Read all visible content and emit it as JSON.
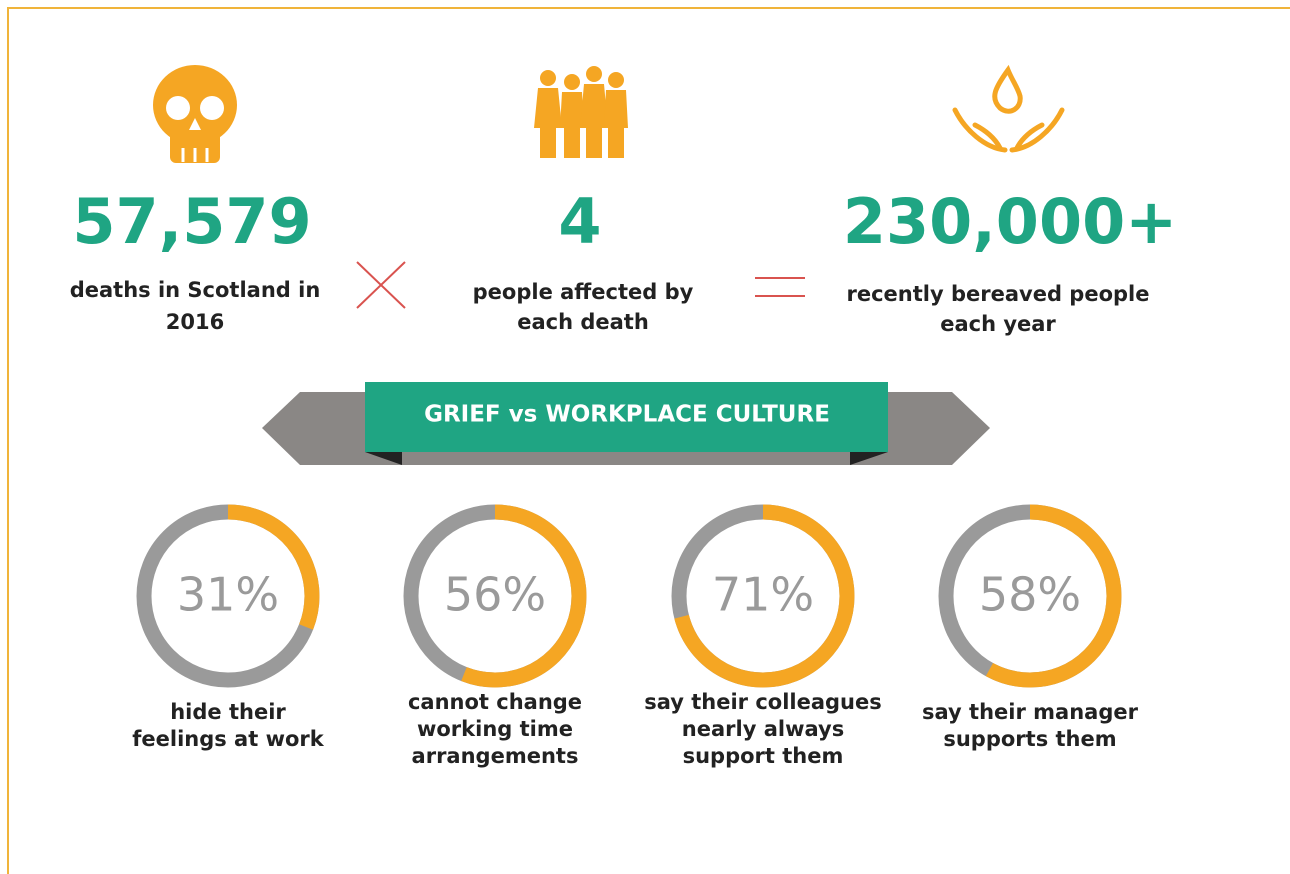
{
  "stats": [
    {
      "number": "57,579",
      "caption": [
        "deaths in Scotland in",
        "2016"
      ]
    },
    {
      "number": "4",
      "caption": [
        "people affected by",
        "each death"
      ]
    },
    {
      "number": "230,000+",
      "caption": [
        "recently bereaved people",
        "each year"
      ]
    }
  ],
  "banner": "GRIEF vs WORKPLACE CULTURE",
  "rings": [
    {
      "value": 31,
      "label": "31%",
      "caption": [
        "hide their",
        "feelings at work"
      ]
    },
    {
      "value": 56,
      "label": "56%",
      "caption": [
        "cannot change",
        "working time",
        "arrangements"
      ]
    },
    {
      "value": 71,
      "label": "71%",
      "caption": [
        "say their colleagues",
        "nearly always",
        "support them"
      ]
    },
    {
      "value": 58,
      "label": "58%",
      "caption": [
        "say their manager",
        "supports them"
      ]
    }
  ]
}
